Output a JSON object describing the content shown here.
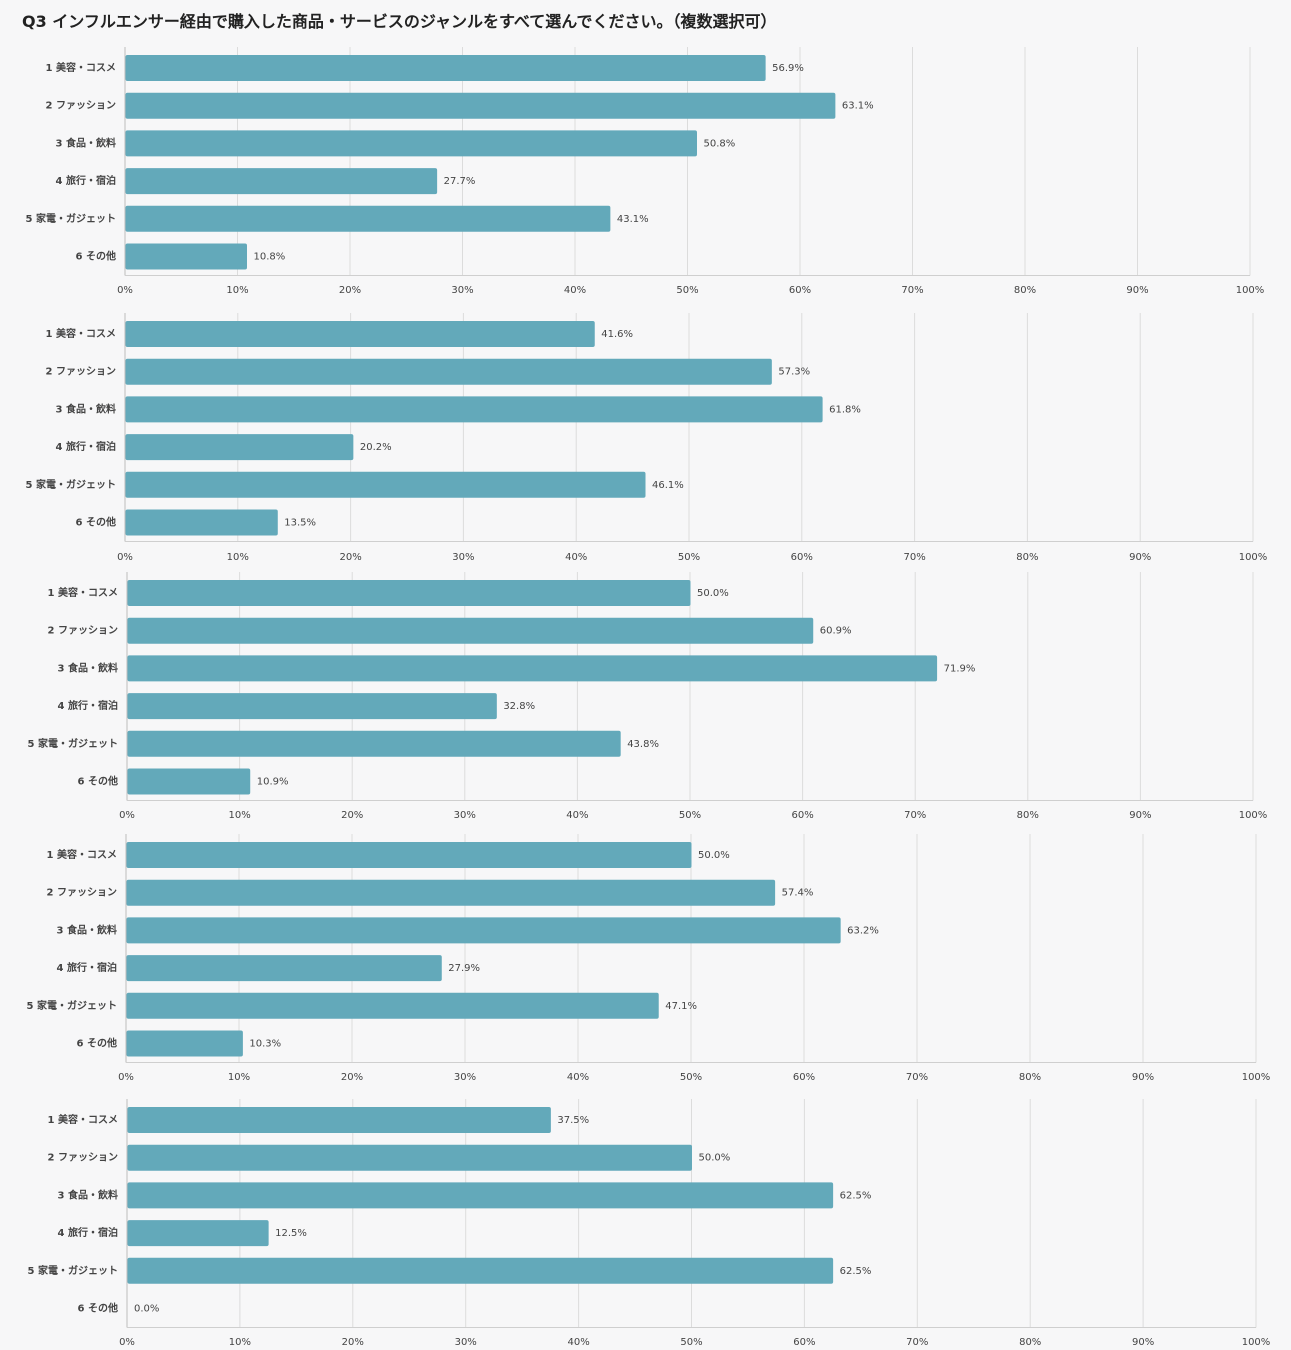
{
  "page": {
    "title": "Q3 インフルエンサー経由で購入した商品・サービスのジャンルをすべて選んでください。（複数選択可）"
  },
  "colors": {
    "bar": "#63a9ba",
    "grid": "#dcdcdc",
    "text": "#444444",
    "background": "#f7f7f8"
  },
  "chart_data": [
    {
      "type": "bar",
      "orientation": "horizontal",
      "categories": [
        "1 美容・コスメ",
        "2 ファッション",
        "3 食品・飲料",
        "4 旅行・宿泊",
        "5 家電・ガジェット",
        "6 その他"
      ],
      "values": [
        56.9,
        63.1,
        50.8,
        27.7,
        43.1,
        10.8
      ],
      "data_labels": [
        "56.9%",
        "63.1%",
        "50.8%",
        "27.7%",
        "43.1%",
        "10.8%"
      ],
      "ticks": [
        "0%",
        "10%",
        "20%",
        "30%",
        "40%",
        "50%",
        "60%",
        "70%",
        "80%",
        "90%",
        "100%"
      ],
      "xlim": [
        0,
        100
      ],
      "grid": true
    },
    {
      "type": "bar",
      "orientation": "horizontal",
      "categories": [
        "1 美容・コスメ",
        "2 ファッション",
        "3 食品・飲料",
        "4 旅行・宿泊",
        "5 家電・ガジェット",
        "6 その他"
      ],
      "values": [
        41.6,
        57.3,
        61.8,
        20.2,
        46.1,
        13.5
      ],
      "data_labels": [
        "41.6%",
        "57.3%",
        "61.8%",
        "20.2%",
        "46.1%",
        "13.5%"
      ],
      "ticks": [
        "0%",
        "10%",
        "20%",
        "30%",
        "40%",
        "50%",
        "60%",
        "70%",
        "80%",
        "90%",
        "100%"
      ],
      "xlim": [
        0,
        100
      ],
      "grid": true
    },
    {
      "type": "bar",
      "orientation": "horizontal",
      "categories": [
        "1 美容・コスメ",
        "2 ファッション",
        "3 食品・飲料",
        "4 旅行・宿泊",
        "5 家電・ガジェット",
        "6 その他"
      ],
      "values": [
        50.0,
        60.9,
        71.9,
        32.8,
        43.8,
        10.9
      ],
      "data_labels": [
        "50.0%",
        "60.9%",
        "71.9%",
        "32.8%",
        "43.8%",
        "10.9%"
      ],
      "ticks": [
        "0%",
        "10%",
        "20%",
        "30%",
        "40%",
        "50%",
        "60%",
        "70%",
        "80%",
        "90%",
        "100%"
      ],
      "xlim": [
        0,
        100
      ],
      "grid": true
    },
    {
      "type": "bar",
      "orientation": "horizontal",
      "categories": [
        "1 美容・コスメ",
        "2 ファッション",
        "3 食品・飲料",
        "4 旅行・宿泊",
        "5 家電・ガジェット",
        "6 その他"
      ],
      "values": [
        50.0,
        57.4,
        63.2,
        27.9,
        47.1,
        10.3
      ],
      "data_labels": [
        "50.0%",
        "57.4%",
        "63.2%",
        "27.9%",
        "47.1%",
        "10.3%"
      ],
      "ticks": [
        "0%",
        "10%",
        "20%",
        "30%",
        "40%",
        "50%",
        "60%",
        "70%",
        "80%",
        "90%",
        "100%"
      ],
      "xlim": [
        0,
        100
      ],
      "grid": true
    },
    {
      "type": "bar",
      "orientation": "horizontal",
      "categories": [
        "1 美容・コスメ",
        "2 ファッション",
        "3 食品・飲料",
        "4 旅行・宿泊",
        "5 家電・ガジェット",
        "6 その他"
      ],
      "values": [
        37.5,
        50.0,
        62.5,
        12.5,
        62.5,
        0.0
      ],
      "data_labels": [
        "37.5%",
        "50.0%",
        "62.5%",
        "12.5%",
        "62.5%",
        "0.0%"
      ],
      "ticks": [
        "0%",
        "10%",
        "20%",
        "30%",
        "40%",
        "50%",
        "60%",
        "70%",
        "80%",
        "90%",
        "100%"
      ],
      "xlim": [
        0,
        100
      ],
      "grid": true
    }
  ]
}
